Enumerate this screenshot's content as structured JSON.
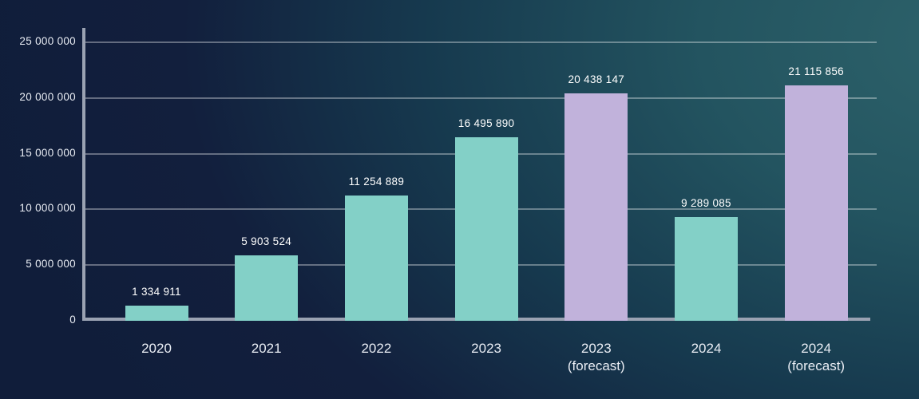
{
  "chart_data": {
    "type": "bar",
    "title": "",
    "xlabel": "",
    "ylabel": "",
    "ylim": [
      0,
      25000000
    ],
    "grid": true,
    "legend": "none",
    "y_ticks": [
      {
        "value": 0,
        "label": "0"
      },
      {
        "value": 5000000,
        "label": "5 000 000"
      },
      {
        "value": 10000000,
        "label": "10 000 000"
      },
      {
        "value": 15000000,
        "label": "15 000 000"
      },
      {
        "value": 20000000,
        "label": "20 000 000"
      },
      {
        "value": 25000000,
        "label": "25 000 000"
      }
    ],
    "bars": [
      {
        "category": "2020",
        "sublabel": "",
        "value": 1334911,
        "value_label": "1 334 911",
        "series": "actual"
      },
      {
        "category": "2021",
        "sublabel": "",
        "value": 5903524,
        "value_label": "5 903 524",
        "series": "actual"
      },
      {
        "category": "2022",
        "sublabel": "",
        "value": 11254889,
        "value_label": "11 254 889",
        "series": "actual"
      },
      {
        "category": "2023",
        "sublabel": "",
        "value": 16495890,
        "value_label": "16 495 890",
        "series": "actual"
      },
      {
        "category": "2023",
        "sublabel": "(forecast)",
        "value": 20438147,
        "value_label": "20 438 147",
        "series": "forecast"
      },
      {
        "category": "2024",
        "sublabel": "",
        "value": 9289085,
        "value_label": "9 289 085",
        "series": "actual"
      },
      {
        "category": "2024",
        "sublabel": "(forecast)",
        "value": 21115856,
        "value_label": "21 115 856",
        "series": "forecast"
      }
    ],
    "colors": {
      "actual_bar": "#83D0C7",
      "forecast_bar": "#C1B2DB",
      "background_dark": "#101d3a",
      "background_teal": "#2e636b",
      "axis": "#9aa2b2",
      "gridline": "rgba(255,255,255,0.35)",
      "text": "#e9edf4"
    }
  }
}
